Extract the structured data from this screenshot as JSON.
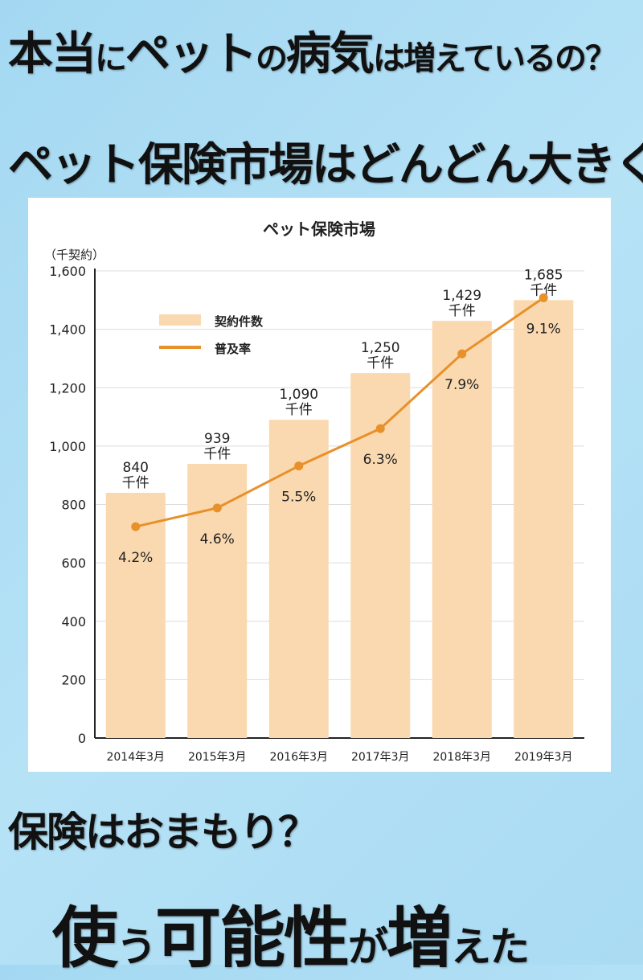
{
  "headline1": [
    {
      "text": "本当",
      "size": "b"
    },
    {
      "text": "に",
      "size": "s"
    },
    {
      "text": "ペット",
      "size": "b"
    },
    {
      "text": "の",
      "size": "s"
    },
    {
      "text": "病気",
      "size": "b"
    },
    {
      "text": "は増えているの？",
      "size": "s"
    }
  ],
  "headline2": "ペット保険市場はどんどん大きく",
  "headline3": "保険はおまもり？",
  "headline4": [
    {
      "text": "使",
      "size": "b"
    },
    {
      "text": "う",
      "size": "s"
    },
    {
      "text": "可能性",
      "size": "b"
    },
    {
      "text": "が",
      "size": "s"
    },
    {
      "text": "増",
      "size": "b"
    },
    {
      "text": "えた",
      "size": "s"
    }
  ],
  "colors": {
    "bar": "#fad9b0",
    "line": "#e8902a",
    "axis": "#222",
    "grid": "#dddddd"
  },
  "chart_data": {
    "type": "bar",
    "title": "ペット保険市場",
    "ylabel": "（千契約）",
    "xlabel": "",
    "ylim": [
      0,
      1600
    ],
    "yticks": [
      "0",
      "200",
      "400",
      "600",
      "800",
      "1,000",
      "1,200",
      "1,400",
      "1,600"
    ],
    "ytick_values": [
      0,
      200,
      400,
      600,
      800,
      1000,
      1200,
      1400,
      1600
    ],
    "grid": true,
    "legend_position": "top-left",
    "categories": [
      "2014年3月",
      "2015年3月",
      "2016年3月",
      "2017年3月",
      "2018年3月",
      "2019年3月"
    ],
    "series": [
      {
        "name": "契約件数",
        "type": "bar",
        "values": [
          840,
          939,
          1090,
          1250,
          1429,
          1685
        ],
        "labels": [
          "840",
          "939",
          "1,090",
          "1,250",
          "1,429",
          "1,685"
        ],
        "unit": "千件"
      },
      {
        "name": "普及率",
        "type": "line",
        "values": [
          4.2,
          4.6,
          5.5,
          6.3,
          7.9,
          9.1
        ],
        "labels": [
          "4.2%",
          "4.6%",
          "5.5%",
          "6.3%",
          "7.9%",
          "9.1%"
        ]
      }
    ]
  }
}
